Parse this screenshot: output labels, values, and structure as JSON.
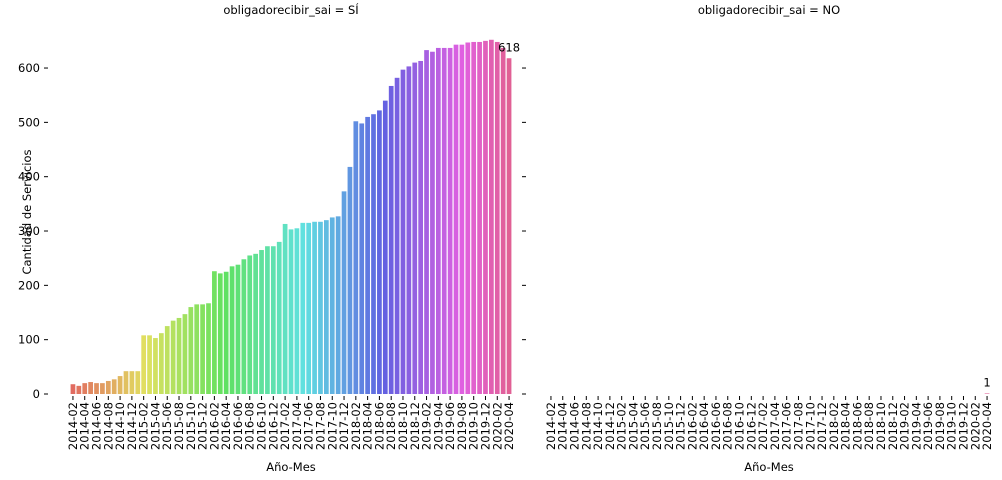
{
  "chart_data": [
    {
      "type": "bar",
      "title": "obligadorecibir_sai = SÍ",
      "xlabel": "Año-Mes",
      "ylabel": "Cantidad de Servicios",
      "palette": "husl",
      "categories": [
        "2014-02",
        null,
        "2014-04",
        null,
        "2014-06",
        null,
        "2014-08",
        null,
        "2014-10",
        null,
        "2014-12",
        null,
        "2015-02",
        null,
        "2015-04",
        null,
        "2015-06",
        null,
        "2015-08",
        null,
        "2015-10",
        null,
        "2015-12",
        null,
        "2016-02",
        null,
        "2016-04",
        null,
        "2016-06",
        null,
        "2016-08",
        null,
        "2016-10",
        null,
        "2016-12",
        null,
        "2017-02",
        null,
        "2017-04",
        null,
        "2017-06",
        null,
        "2017-08",
        null,
        "2017-10",
        null,
        "2017-12",
        null,
        "2018-02",
        null,
        "2018-04",
        null,
        "2018-06",
        null,
        "2018-08",
        null,
        "2018-10",
        null,
        "2018-12",
        null,
        "2019-02",
        null,
        "2019-04",
        null,
        "2019-06",
        null,
        "2019-08",
        null,
        "2019-10",
        null,
        "2019-12",
        null,
        "2020-02",
        null,
        "2020-04"
      ],
      "values": [
        18,
        15,
        20,
        22,
        20,
        20,
        24,
        27,
        33,
        42,
        42,
        42,
        108,
        108,
        103,
        112,
        125,
        135,
        140,
        147,
        160,
        165,
        165,
        167,
        226,
        222,
        225,
        235,
        238,
        248,
        255,
        258,
        265,
        272,
        272,
        280,
        313,
        303,
        305,
        315,
        315,
        317,
        317,
        320,
        325,
        327,
        373,
        418,
        502,
        498,
        510,
        515,
        522,
        540,
        567,
        582,
        597,
        603,
        610,
        613,
        633,
        630,
        637,
        637,
        637,
        643,
        643,
        647,
        648,
        648,
        650,
        652,
        648,
        637,
        618
      ],
      "ylim": [
        0,
        670
      ],
      "yticks": [
        0,
        100,
        200,
        300,
        400,
        500,
        600
      ],
      "show_ytick_labels": true
    },
    {
      "type": "bar",
      "title": "obligadorecibir_sai = NO",
      "xlabel": "Año-Mes",
      "palette": "husl",
      "categories": [
        "2014-02",
        null,
        "2014-04",
        null,
        "2014-06",
        null,
        "2014-08",
        null,
        "2014-10",
        null,
        "2014-12",
        null,
        "2015-02",
        null,
        "2015-04",
        null,
        "2015-06",
        null,
        "2015-08",
        null,
        "2015-10",
        null,
        "2015-12",
        null,
        "2016-02",
        null,
        "2016-04",
        null,
        "2016-06",
        null,
        "2016-08",
        null,
        "2016-10",
        null,
        "2016-12",
        null,
        "2017-02",
        null,
        "2017-04",
        null,
        "2017-06",
        null,
        "2017-08",
        null,
        "2017-10",
        null,
        "2017-12",
        null,
        "2018-02",
        null,
        "2018-04",
        null,
        "2018-06",
        null,
        "2018-08",
        null,
        "2018-10",
        null,
        "2018-12",
        null,
        "2019-02",
        null,
        "2019-04",
        null,
        "2019-06",
        null,
        "2019-08",
        null,
        "2019-10",
        null,
        "2019-12",
        null,
        "2020-02",
        null,
        "2020-04"
      ],
      "values": [
        0,
        0,
        0,
        0,
        0,
        0,
        0,
        0,
        0,
        0,
        0,
        0,
        0,
        0,
        0,
        0,
        0,
        0,
        0,
        0,
        0,
        0,
        0,
        0,
        0,
        0,
        0,
        0,
        0,
        0,
        0,
        0,
        0,
        0,
        0,
        0,
        0,
        0,
        0,
        0,
        0,
        0,
        0,
        0,
        0,
        0,
        0,
        0,
        0,
        0,
        0,
        0,
        0,
        0,
        0,
        0,
        0,
        0,
        0,
        0,
        0,
        0,
        0,
        0,
        0,
        0,
        0,
        0,
        0,
        0,
        0,
        0,
        0,
        0,
        1
      ],
      "ylim": [
        0,
        670
      ],
      "yticks": [
        0,
        100,
        200,
        300,
        400,
        500,
        600
      ],
      "show_ytick_labels": false
    }
  ]
}
